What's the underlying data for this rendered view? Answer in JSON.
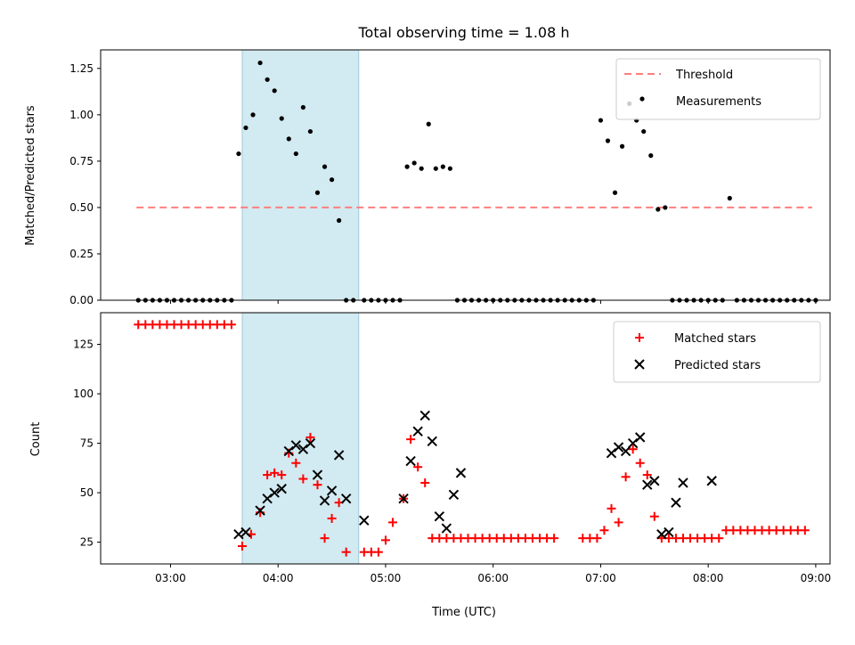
{
  "chart_data": {
    "title": "Total observing time = 1.08 h",
    "highlight_span": [
      "03:40",
      "04:45"
    ],
    "x_ticks": [
      "03:00",
      "04:00",
      "05:00",
      "06:00",
      "07:00",
      "08:00",
      "09:00"
    ],
    "xlim": [
      "02:21",
      "09:08"
    ],
    "xlabel": "Time (UTC)",
    "panels": [
      {
        "type": "scatter",
        "ylabel": "Matched/Predicted stars",
        "ylim": [
          0,
          1.35
        ],
        "y_ticks": [
          "0.00",
          "0.25",
          "0.50",
          "0.75",
          "1.00",
          "1.25"
        ],
        "y_tick_values": [
          0,
          0.25,
          0.5,
          0.75,
          1.0,
          1.25
        ],
        "legend_position": "top-right",
        "threshold": {
          "name": "Threshold",
          "value": 0.5,
          "from": "02:41",
          "to": "08:58",
          "color": "#ff7f7f"
        },
        "series": [
          {
            "name": "Measurements",
            "color": "#000000",
            "x": [
              "02:42",
              "02:46",
              "02:50",
              "02:54",
              "02:58",
              "03:02",
              "03:06",
              "03:10",
              "03:14",
              "03:18",
              "03:22",
              "03:26",
              "03:30",
              "03:34",
              "03:38",
              "03:42",
              "03:46",
              "03:50",
              "03:54",
              "03:58",
              "04:02",
              "04:06",
              "04:10",
              "04:14",
              "04:18",
              "04:22",
              "04:26",
              "04:30",
              "04:34",
              "04:38",
              "04:42",
              "04:48",
              "04:52",
              "04:56",
              "05:00",
              "05:04",
              "05:08",
              "05:12",
              "05:16",
              "05:20",
              "05:24",
              "05:28",
              "05:32",
              "05:36",
              "05:40",
              "05:44",
              "05:48",
              "05:52",
              "05:56",
              "06:00",
              "06:04",
              "06:08",
              "06:12",
              "06:16",
              "06:20",
              "06:24",
              "06:28",
              "06:32",
              "06:36",
              "06:40",
              "06:44",
              "06:48",
              "06:52",
              "06:56",
              "07:00",
              "07:04",
              "07:08",
              "07:12",
              "07:16",
              "07:20",
              "07:24",
              "07:28",
              "07:32",
              "07:36",
              "07:40",
              "07:44",
              "07:48",
              "07:52",
              "07:56",
              "08:00",
              "08:04",
              "08:08",
              "08:12",
              "08:16",
              "08:20",
              "08:24",
              "08:28",
              "08:32",
              "08:36",
              "08:40",
              "08:44",
              "08:48",
              "08:52",
              "08:56",
              "09:00"
            ],
            "y": [
              0,
              0,
              0,
              0,
              0,
              0,
              0,
              0,
              0,
              0,
              0,
              0,
              0,
              0,
              0.79,
              0.93,
              1.0,
              1.28,
              1.19,
              1.13,
              0.98,
              0.87,
              0.79,
              1.04,
              0.91,
              0.58,
              0.72,
              0.65,
              0.43,
              0,
              0,
              0,
              0,
              0,
              0,
              0,
              0,
              0.72,
              0.74,
              0.71,
              0.95,
              0.71,
              0.72,
              0.71,
              0,
              0,
              0,
              0,
              0,
              0,
              0,
              0,
              0,
              0,
              0,
              0,
              0,
              0,
              0,
              0,
              0,
              0,
              0,
              0,
              0.97,
              0.86,
              0.58,
              0.83,
              1.06,
              0.97,
              0.91,
              0.78,
              0.49,
              0.5,
              0,
              0,
              0,
              0,
              0,
              0,
              0,
              0,
              0.55,
              0,
              0,
              0,
              0,
              0,
              0,
              0,
              0,
              0,
              0,
              0,
              0
            ]
          }
        ]
      },
      {
        "type": "scatter",
        "ylabel": "Count",
        "ylim": [
          14,
          141
        ],
        "y_ticks": [
          "25",
          "50",
          "75",
          "100",
          "125"
        ],
        "y_tick_values": [
          25,
          50,
          75,
          100,
          125
        ],
        "legend_position": "top-right",
        "series": [
          {
            "name": "Matched stars",
            "marker": "+",
            "color": "#ff0000",
            "x": [
              "02:42",
              "02:46",
              "02:50",
              "02:54",
              "02:58",
              "03:02",
              "03:06",
              "03:10",
              "03:14",
              "03:18",
              "03:22",
              "03:26",
              "03:30",
              "03:34",
              "03:40",
              "03:45",
              "03:50",
              "03:54",
              "03:58",
              "04:02",
              "04:06",
              "04:10",
              "04:14",
              "04:18",
              "04:22",
              "04:26",
              "04:30",
              "04:34",
              "04:38",
              "04:48",
              "04:52",
              "04:56",
              "05:00",
              "05:04",
              "05:10",
              "05:14",
              "05:18",
              "05:22",
              "05:26",
              "05:30",
              "05:34",
              "05:38",
              "05:42",
              "05:46",
              "05:50",
              "05:54",
              "05:58",
              "06:02",
              "06:06",
              "06:10",
              "06:14",
              "06:18",
              "06:22",
              "06:26",
              "06:30",
              "06:34",
              "06:50",
              "06:54",
              "06:58",
              "07:02",
              "07:06",
              "07:10",
              "07:14",
              "07:18",
              "07:22",
              "07:26",
              "07:30",
              "07:34",
              "07:38",
              "07:42",
              "07:46",
              "07:50",
              "07:54",
              "07:58",
              "08:02",
              "08:06",
              "08:10",
              "08:14",
              "08:18",
              "08:22",
              "08:26",
              "08:30",
              "08:34",
              "08:38",
              "08:42",
              "08:46",
              "08:50",
              "08:54"
            ],
            "y": [
              135,
              135,
              135,
              135,
              135,
              135,
              135,
              135,
              135,
              135,
              135,
              135,
              135,
              135,
              23,
              29,
              40,
              59,
              60,
              59,
              70,
              65,
              57,
              78,
              54,
              27,
              37,
              45,
              20,
              20,
              20,
              20,
              26,
              35,
              47,
              77,
              63,
              55,
              27,
              27,
              27,
              27,
              27,
              27,
              27,
              27,
              27,
              27,
              27,
              27,
              27,
              27,
              27,
              27,
              27,
              27,
              27,
              27,
              27,
              31,
              42,
              35,
              58,
              72,
              65,
              59,
              38,
              27,
              27,
              27,
              27,
              27,
              27,
              27,
              27,
              27,
              31,
              31,
              31,
              31,
              31,
              31,
              31,
              31,
              31,
              31,
              31,
              31
            ]
          },
          {
            "name": "Predicted stars",
            "marker": "x",
            "color": "#000000",
            "x": [
              "03:38",
              "03:42",
              "03:50",
              "03:54",
              "03:58",
              "04:02",
              "04:06",
              "04:10",
              "04:14",
              "04:18",
              "04:22",
              "04:26",
              "04:30",
              "04:34",
              "04:38",
              "04:48",
              "05:10",
              "05:14",
              "05:18",
              "05:22",
              "05:26",
              "05:30",
              "05:34",
              "05:38",
              "05:42",
              "07:06",
              "07:10",
              "07:14",
              "07:18",
              "07:22",
              "07:26",
              "07:30",
              "07:34",
              "07:38",
              "07:42",
              "07:46",
              "08:02"
            ],
            "y": [
              29,
              30,
              41,
              47,
              50,
              52,
              71,
              74,
              72,
              75,
              59,
              46,
              51,
              69,
              47,
              36,
              47,
              66,
              81,
              89,
              76,
              38,
              32,
              49,
              60,
              70,
              73,
              71,
              75,
              78,
              54,
              56,
              29,
              30,
              45,
              55,
              56
            ]
          }
        ]
      }
    ]
  }
}
